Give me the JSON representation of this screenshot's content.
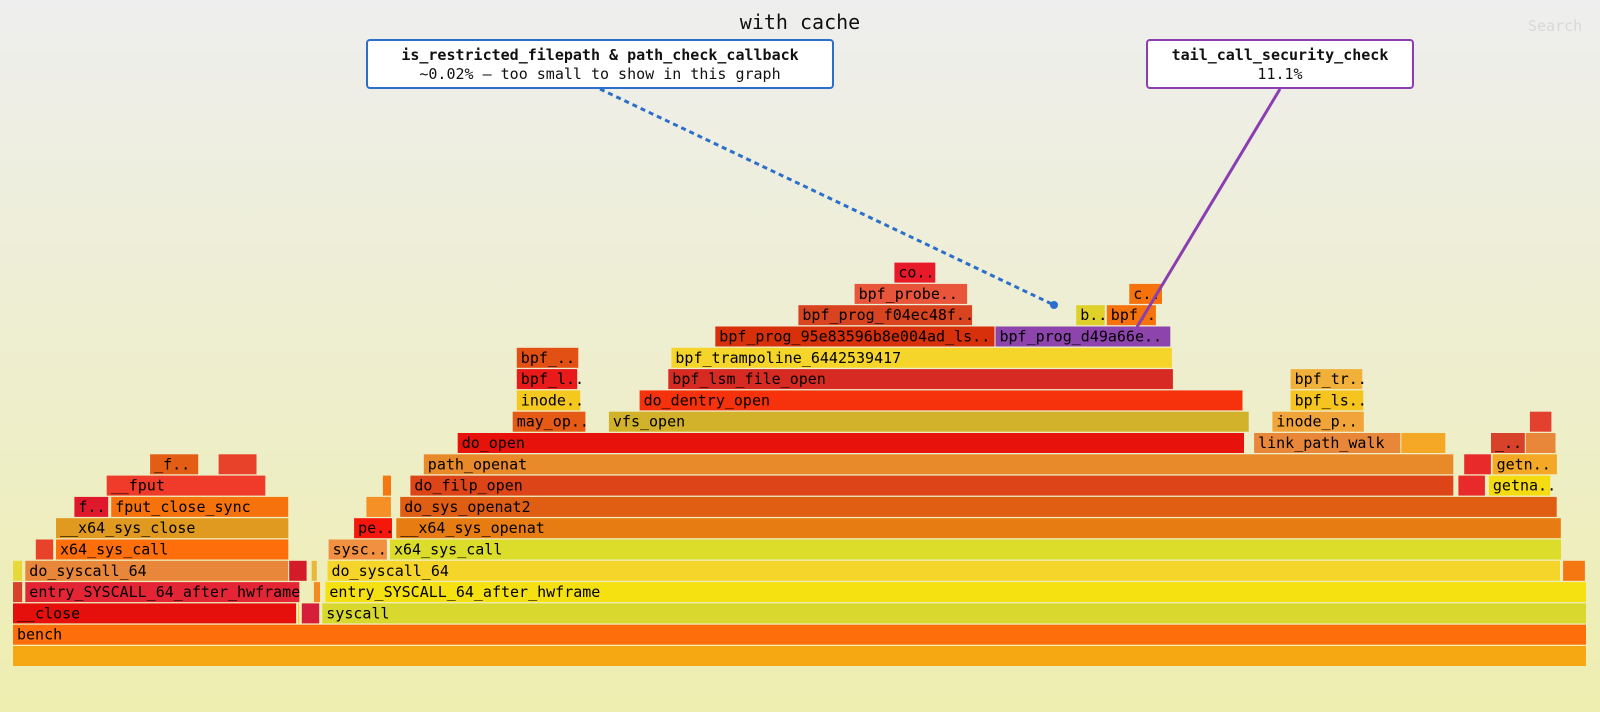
{
  "header": {
    "title": "with cache",
    "search_label": "Search"
  },
  "callouts": {
    "left": {
      "title": "is_restricted_filepath & path_check_callback",
      "subtitle": "~0.02% — too small to show in this graph",
      "color": "#2c6fca"
    },
    "right": {
      "title": "tail_call_security_check",
      "subtitle": "11.1%",
      "color": "#8a3fb0"
    }
  },
  "chart_data": {
    "type": "flamegraph",
    "title": "with cache",
    "frames": [
      {
        "label": "",
        "depth": 0,
        "start": 0.0,
        "width": 1.0,
        "color": "#f5a811"
      },
      {
        "label": "bench",
        "depth": 1,
        "start": 0.0,
        "width": 1.0,
        "color": "#fe6f0c"
      },
      {
        "label": "__close",
        "depth": 2,
        "start": 0.0,
        "width": 0.1805,
        "color": "#e5100c"
      },
      {
        "label": "",
        "depth": 2,
        "start": 0.1812,
        "width": 0.0013,
        "color": "#f5c820"
      },
      {
        "label": "",
        "depth": 2,
        "start": 0.1835,
        "width": 0.0117,
        "color": "#d61d3a"
      },
      {
        "label": "syscall",
        "depth": 2,
        "start": 0.1965,
        "width": 0.8035,
        "color": "#d8d82e"
      },
      {
        "label": "",
        "depth": 3,
        "start": 0.0,
        "width": 0.0065,
        "color": "#d8412a"
      },
      {
        "label": "entry_SYSCALL_64_after_hwframe",
        "depth": 3,
        "start": 0.0078,
        "width": 0.1747,
        "color": "#e32536"
      },
      {
        "label": "",
        "depth": 3,
        "start": 0.1912,
        "width": 0.0045,
        "color": "#f58b1e"
      },
      {
        "label": "entry_SYSCALL_64_after_hwframe",
        "depth": 3,
        "start": 0.1985,
        "width": 0.8015,
        "color": "#f5e012"
      },
      {
        "label": "",
        "depth": 4,
        "start": 0.0,
        "width": 0.0065,
        "color": "#e8d93a"
      },
      {
        "label": "do_syscall_64",
        "depth": 4,
        "start": 0.0078,
        "width": 0.1676,
        "color": "#e8873a"
      },
      {
        "label": "",
        "depth": 4,
        "start": 0.1755,
        "width": 0.0117,
        "color": "#d31b2a"
      },
      {
        "label": "",
        "depth": 4,
        "start": 0.1898,
        "width": 0.0039,
        "color": "#e8b83a"
      },
      {
        "label": "do_syscall_64",
        "depth": 4,
        "start": 0.1998,
        "width": 0.7837,
        "color": "#f5d52a"
      },
      {
        "label": "",
        "depth": 4,
        "start": 0.9848,
        "width": 0.0145,
        "color": "#f57712"
      },
      {
        "label": "",
        "depth": 5,
        "start": 0.0145,
        "width": 0.0117,
        "color": "#e8432a"
      },
      {
        "label": "x64_sys_call",
        "depth": 5,
        "start": 0.0273,
        "width": 0.1482,
        "color": "#fe6f0c"
      },
      {
        "label": "sysc..",
        "depth": 5,
        "start": 0.2005,
        "width": 0.0377,
        "color": "#f09040"
      },
      {
        "label": "x64_sys_call",
        "depth": 5,
        "start": 0.2395,
        "width": 0.7446,
        "color": "#dcdc2a"
      },
      {
        "label": "__x64_sys_close",
        "depth": 6,
        "start": 0.0273,
        "width": 0.1482,
        "color": "#e09a20"
      },
      {
        "label": "pe..",
        "depth": 6,
        "start": 0.2167,
        "width": 0.0247,
        "color": "#f5160c"
      },
      {
        "label": "__x64_sys_openat",
        "depth": 6,
        "start": 0.2435,
        "width": 0.7405,
        "color": "#e67c12"
      },
      {
        "label": "f..",
        "depth": 7,
        "start": 0.039,
        "width": 0.0221,
        "color": "#e0182c"
      },
      {
        "label": "fput_close_sync",
        "depth": 7,
        "start": 0.0624,
        "width": 0.1131,
        "color": "#f5720c"
      },
      {
        "label": "",
        "depth": 7,
        "start": 0.2245,
        "width": 0.0162,
        "color": "#f59026"
      },
      {
        "label": "do_sys_openat2",
        "depth": 7,
        "start": 0.246,
        "width": 0.7354,
        "color": "#e05d14"
      },
      {
        "label": "__fput",
        "depth": 8,
        "start": 0.0595,
        "width": 0.1014,
        "color": "#f03a2a"
      },
      {
        "label": "",
        "depth": 8,
        "start": 0.235,
        "width": 0.0058,
        "color": "#f57712"
      },
      {
        "label": "do_filp_open",
        "depth": 8,
        "start": 0.2525,
        "width": 0.6632,
        "color": "#dd4418"
      },
      {
        "label": "",
        "depth": 8,
        "start": 0.9183,
        "width": 0.0175,
        "color": "#e82a2a"
      },
      {
        "label": "getna..",
        "depth": 8,
        "start": 0.9377,
        "width": 0.0396,
        "color": "#f5dc12"
      },
      {
        "label": "_f..",
        "depth": 9,
        "start": 0.0871,
        "width": 0.0312,
        "color": "#e35d14"
      },
      {
        "label": "",
        "depth": 9,
        "start": 0.1306,
        "width": 0.0247,
        "color": "#e8432a"
      },
      {
        "label": "path_openat",
        "depth": 9,
        "start": 0.261,
        "width": 0.6547,
        "color": "#e88a2a"
      },
      {
        "label": "",
        "depth": 9,
        "start": 0.922,
        "width": 0.0176,
        "color": "#e82a2a"
      },
      {
        "label": "getn..",
        "depth": 9,
        "start": 0.94,
        "width": 0.0415,
        "color": "#f5a826"
      },
      {
        "label": "do_open",
        "depth": 10,
        "start": 0.2825,
        "width": 0.5002,
        "color": "#e8120c"
      },
      {
        "label": "link_path_walk",
        "depth": 10,
        "start": 0.7885,
        "width": 0.0935,
        "color": "#e8873a"
      },
      {
        "label": "",
        "depth": 10,
        "start": 0.882,
        "width": 0.0286,
        "color": "#f5a826"
      },
      {
        "label": "_..",
        "depth": 10,
        "start": 0.939,
        "width": 0.0221,
        "color": "#d8412a"
      },
      {
        "label": "",
        "depth": 10,
        "start": 0.9611,
        "width": 0.0195,
        "color": "#e8873a"
      },
      {
        "label": "may_op..",
        "depth": 11,
        "start": 0.3175,
        "width": 0.0468,
        "color": "#e55a14"
      },
      {
        "label": "vfs_open",
        "depth": 11,
        "start": 0.3786,
        "width": 0.4071,
        "color": "#d1b22a"
      },
      {
        "label": "inode_p..",
        "depth": 11,
        "start": 0.8001,
        "width": 0.0587,
        "color": "#f0a43a"
      },
      {
        "label": "",
        "depth": 11,
        "start": 0.9637,
        "width": 0.0143,
        "color": "#e34030"
      },
      {
        "label": "inode..",
        "depth": 12,
        "start": 0.3201,
        "width": 0.0409,
        "color": "#f5c820"
      },
      {
        "label": "do_dentry_open",
        "depth": 12,
        "start": 0.3981,
        "width": 0.3837,
        "color": "#f5320c"
      },
      {
        "label": "bpf_ls..",
        "depth": 12,
        "start": 0.8117,
        "width": 0.0468,
        "color": "#f5c41e"
      },
      {
        "label": "bpf_l..",
        "depth": 13,
        "start": 0.3201,
        "width": 0.039,
        "color": "#e81a1a"
      },
      {
        "label": "bpf_lsm_file_open",
        "depth": 13,
        "start": 0.4163,
        "width": 0.3212,
        "color": "#d62a22"
      },
      {
        "label": "bpf_tr..",
        "depth": 13,
        "start": 0.8117,
        "width": 0.0462,
        "color": "#f0b03a"
      },
      {
        "label": "bpf_..",
        "depth": 14,
        "start": 0.3201,
        "width": 0.0397,
        "color": "#e35014"
      },
      {
        "label": "bpf_trampoline_6442539417",
        "depth": 14,
        "start": 0.4183,
        "width": 0.3186,
        "color": "#f5d52a"
      },
      {
        "label": "bpf_prog_95e83596b8e004ad_ls..",
        "depth": 15,
        "start": 0.4462,
        "width": 0.178,
        "color": "#d8300a"
      },
      {
        "label": "bpf_prog_d49a66e..",
        "depth": 15,
        "start": 0.6242,
        "width": 0.1117,
        "color": "#8e44ad"
      },
      {
        "label": "bpf_prog_f04ec48f..",
        "depth": 16,
        "start": 0.499,
        "width": 0.111,
        "color": "#d84320"
      },
      {
        "label": "b..",
        "depth": 16,
        "start": 0.6755,
        "width": 0.0188,
        "color": "#e0d02a"
      },
      {
        "label": "bpf..",
        "depth": 16,
        "start": 0.6949,
        "width": 0.0318,
        "color": "#f5720c"
      },
      {
        "label": "bpf_probe..",
        "depth": 17,
        "start": 0.5347,
        "width": 0.0721,
        "color": "#e8553a"
      },
      {
        "label": "c..",
        "depth": 17,
        "start": 0.7092,
        "width": 0.0214,
        "color": "#f5720c"
      },
      {
        "label": "co..",
        "depth": 18,
        "start": 0.56,
        "width": 0.0266,
        "color": "#e81a2a"
      }
    ]
  }
}
